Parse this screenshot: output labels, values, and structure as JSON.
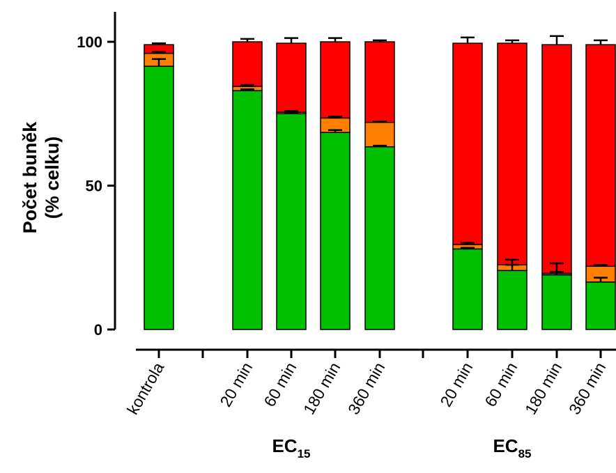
{
  "chart_data": {
    "type": "bar",
    "stacked": true,
    "ylabel_line1": "Počet buněk",
    "ylabel_line2": "(% celku)",
    "ylim": [
      0,
      100
    ],
    "yticks": [
      0,
      50,
      100
    ],
    "categories": [
      "kontrola",
      "20 min",
      "60 min",
      "180 min",
      "360 min",
      "20 min",
      "60 min",
      "180 min",
      "360 min"
    ],
    "groups": [
      {
        "label_main": "EC",
        "label_sub": "15",
        "categories": [
          1,
          2,
          3,
          4
        ]
      },
      {
        "label_main": "EC",
        "label_sub": "85",
        "categories": [
          5,
          6,
          7,
          8
        ]
      }
    ],
    "series": [
      {
        "color": "#00c000",
        "values": [
          91.5,
          83,
          75,
          68.5,
          63.5,
          28,
          20.5,
          19,
          16.5
        ],
        "errors": [
          2.5,
          0.5,
          0.5,
          0.8,
          0.4,
          0.4,
          2,
          1,
          1.5
        ]
      },
      {
        "color": "#ff8000",
        "values": [
          4.5,
          1.5,
          0.5,
          5,
          8.5,
          1.5,
          2,
          0.5,
          5.5
        ],
        "errors": [
          0.5,
          0.5,
          0.4,
          0.5,
          0.3,
          0.6,
          1.8,
          3.5,
          0.4
        ]
      },
      {
        "color": "#ff0000",
        "values": [
          3,
          15.5,
          24,
          26.5,
          28,
          70,
          77,
          79.5,
          77
        ],
        "errors": [
          0.5,
          1,
          1.8,
          1.3,
          0.5,
          2,
          1,
          3,
          1.5
        ]
      }
    ]
  }
}
